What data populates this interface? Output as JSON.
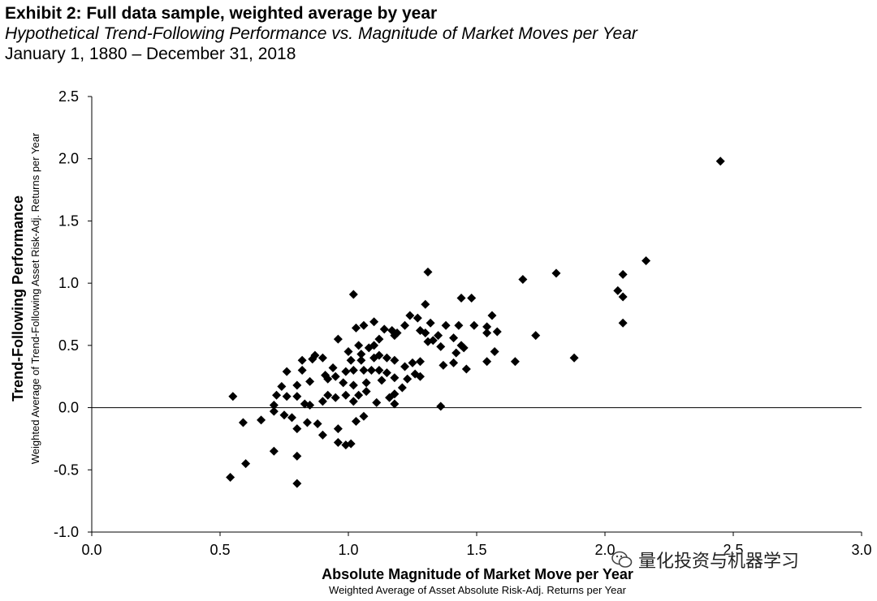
{
  "header": {
    "title": "Exhibit 2: Full data sample, weighted average by year",
    "subtitle": "Hypothetical Trend-Following Performance vs. Magnitude of Market Moves per Year",
    "date_range": "January 1, 1880 – December 31, 2018"
  },
  "watermark": {
    "text": "量化投资与机器学习",
    "icon": "wechat-icon"
  },
  "chart_data": {
    "type": "scatter",
    "title": "Exhibit 2: Full data sample, weighted average by year",
    "subtitle": "Hypothetical Trend-Following Performance vs. Magnitude of Market Moves per Year",
    "xlabel": "Absolute Magnitude of Market Move per Year",
    "xlabel_sub": "Weighted Average of Asset Absolute Risk-Adj. Returns per Year",
    "ylabel": "Trend-Following Performance",
    "ylabel_sub": "Weighted Average of Trend-Following Asset Risk-Adj. Returns per Year",
    "xlim": [
      0.0,
      3.0
    ],
    "ylim": [
      -1.0,
      2.5
    ],
    "x_ticks": [
      "0.0",
      "0.5",
      "1.0",
      "1.5",
      "2.0",
      "2.5",
      "3.0"
    ],
    "y_ticks": [
      "2.5",
      "2.0",
      "1.5",
      "1.0",
      "0.5",
      "0.0",
      "-0.5",
      "-1.0"
    ],
    "grid": false,
    "legend": "none",
    "marker": "diamond",
    "marker_color": "#000000",
    "points": [
      [
        2.45,
        1.98
      ],
      [
        2.16,
        1.18
      ],
      [
        2.07,
        1.07
      ],
      [
        2.05,
        0.94
      ],
      [
        2.07,
        0.89
      ],
      [
        2.07,
        0.68
      ],
      [
        1.81,
        1.08
      ],
      [
        1.68,
        1.03
      ],
      [
        1.88,
        0.4
      ],
      [
        1.73,
        0.58
      ],
      [
        1.65,
        0.37
      ],
      [
        1.31,
        1.09
      ],
      [
        1.02,
        0.91
      ],
      [
        1.3,
        0.83
      ],
      [
        1.44,
        0.88
      ],
      [
        1.48,
        0.88
      ],
      [
        1.56,
        0.74
      ],
      [
        1.27,
        0.72
      ],
      [
        1.24,
        0.74
      ],
      [
        1.54,
        0.65
      ],
      [
        1.49,
        0.66
      ],
      [
        1.58,
        0.61
      ],
      [
        1.54,
        0.6
      ],
      [
        1.57,
        0.45
      ],
      [
        1.54,
        0.37
      ],
      [
        1.44,
        0.5
      ],
      [
        1.41,
        0.56
      ],
      [
        1.45,
        0.48
      ],
      [
        1.38,
        0.66
      ],
      [
        1.43,
        0.66
      ],
      [
        1.35,
        0.58
      ],
      [
        1.32,
        0.68
      ],
      [
        1.3,
        0.6
      ],
      [
        1.28,
        0.62
      ],
      [
        1.33,
        0.54
      ],
      [
        1.36,
        0.49
      ],
      [
        1.31,
        0.53
      ],
      [
        1.42,
        0.44
      ],
      [
        1.41,
        0.36
      ],
      [
        1.46,
        0.31
      ],
      [
        1.37,
        0.34
      ],
      [
        1.36,
        0.01
      ],
      [
        1.28,
        0.37
      ],
      [
        1.25,
        0.36
      ],
      [
        1.22,
        0.33
      ],
      [
        1.28,
        0.25
      ],
      [
        1.23,
        0.23
      ],
      [
        1.26,
        0.27
      ],
      [
        1.17,
        0.62
      ],
      [
        1.19,
        0.6
      ],
      [
        1.14,
        0.63
      ],
      [
        1.1,
        0.69
      ],
      [
        1.06,
        0.66
      ],
      [
        1.03,
        0.64
      ],
      [
        1.12,
        0.55
      ],
      [
        1.18,
        0.58
      ],
      [
        1.22,
        0.66
      ],
      [
        1.1,
        0.5
      ],
      [
        1.04,
        0.5
      ],
      [
        1.08,
        0.48
      ],
      [
        1.0,
        0.45
      ],
      [
        0.96,
        0.55
      ],
      [
        1.05,
        0.43
      ],
      [
        1.12,
        0.42
      ],
      [
        1.15,
        0.4
      ],
      [
        1.1,
        0.4
      ],
      [
        1.05,
        0.38
      ],
      [
        1.01,
        0.38
      ],
      [
        1.18,
        0.38
      ],
      [
        1.12,
        0.3
      ],
      [
        1.15,
        0.28
      ],
      [
        1.09,
        0.3
      ],
      [
        1.06,
        0.3
      ],
      [
        1.02,
        0.3
      ],
      [
        0.99,
        0.29
      ],
      [
        0.95,
        0.25
      ],
      [
        0.98,
        0.2
      ],
      [
        1.02,
        0.18
      ],
      [
        1.07,
        0.2
      ],
      [
        1.13,
        0.22
      ],
      [
        1.18,
        0.24
      ],
      [
        1.21,
        0.16
      ],
      [
        1.18,
        0.11
      ],
      [
        1.16,
        0.08
      ],
      [
        1.18,
        0.03
      ],
      [
        1.11,
        0.04
      ],
      [
        1.07,
        0.13
      ],
      [
        1.04,
        0.1
      ],
      [
        1.02,
        0.05
      ],
      [
        0.99,
        0.1
      ],
      [
        0.95,
        0.08
      ],
      [
        0.92,
        0.1
      ],
      [
        0.9,
        0.05
      ],
      [
        0.94,
        0.32
      ],
      [
        0.91,
        0.26
      ],
      [
        0.92,
        0.23
      ],
      [
        0.9,
        0.4
      ],
      [
        0.87,
        0.42
      ],
      [
        0.86,
        0.39
      ],
      [
        0.82,
        0.38
      ],
      [
        0.82,
        0.3
      ],
      [
        0.85,
        0.21
      ],
      [
        0.8,
        0.18
      ],
      [
        0.76,
        0.29
      ],
      [
        0.74,
        0.17
      ],
      [
        0.72,
        0.1
      ],
      [
        0.76,
        0.09
      ],
      [
        0.8,
        0.09
      ],
      [
        0.83,
        0.03
      ],
      [
        0.85,
        0.02
      ],
      [
        0.71,
        0.02
      ],
      [
        0.75,
        -0.06
      ],
      [
        0.78,
        -0.08
      ],
      [
        0.71,
        -0.03
      ],
      [
        0.8,
        -0.17
      ],
      [
        0.84,
        -0.12
      ],
      [
        0.88,
        -0.13
      ],
      [
        0.9,
        -0.22
      ],
      [
        0.96,
        -0.17
      ],
      [
        0.96,
        -0.28
      ],
      [
        0.99,
        -0.3
      ],
      [
        1.01,
        -0.29
      ],
      [
        1.03,
        -0.11
      ],
      [
        1.06,
        -0.07
      ],
      [
        0.66,
        -0.1
      ],
      [
        0.59,
        -0.12
      ],
      [
        0.55,
        0.09
      ],
      [
        0.6,
        -0.45
      ],
      [
        0.71,
        -0.35
      ],
      [
        0.8,
        -0.39
      ],
      [
        0.8,
        -0.61
      ],
      [
        0.54,
        -0.56
      ]
    ]
  }
}
